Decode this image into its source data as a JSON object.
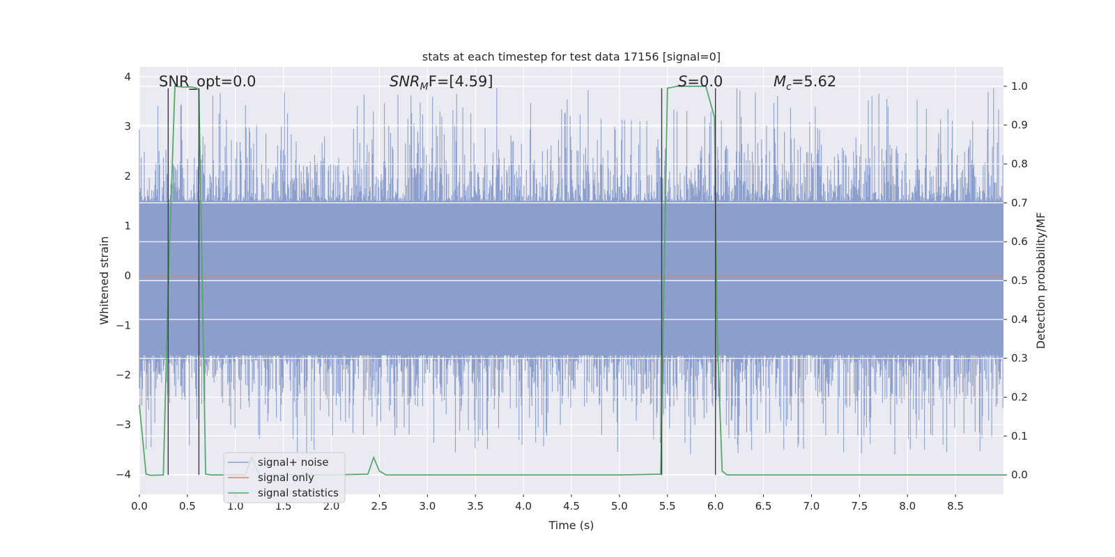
{
  "chart_data": {
    "type": "line",
    "title": "stats at each timestep for test data 17156 [signal=0]",
    "xlabel": "Time (s)",
    "ylabel_left": "Whitened strain",
    "ylabel_right": "Detection probability/MF",
    "xlim": [
      0.0,
      9.0
    ],
    "ylim_left": [
      -4.4,
      4.2
    ],
    "ylim_right": [
      -0.05,
      1.05
    ],
    "x_ticks": [
      "0.0",
      "0.5",
      "1.0",
      "1.5",
      "2.0",
      "2.5",
      "3.0",
      "3.5",
      "4.0",
      "4.5",
      "5.0",
      "5.5",
      "6.0",
      "6.5",
      "7.0",
      "7.5",
      "8.0",
      "8.5"
    ],
    "y_ticks_left": [
      "4",
      "3",
      "2",
      "1",
      "0",
      "−1",
      "−2",
      "−3",
      "−4"
    ],
    "y_ticks_right": [
      "1.0",
      "0.9",
      "0.8",
      "0.7",
      "0.6",
      "0.5",
      "0.4",
      "0.3",
      "0.2",
      "0.1",
      "0.0"
    ],
    "grid": true,
    "legend_position": "lower-left",
    "annotations": [
      {
        "name": "snr-opt",
        "text": "SNR_opt=0.0"
      },
      {
        "name": "snr-mf",
        "text_main": "SNR",
        "text_sub": "M",
        "text_rest": "F=[4.59]"
      },
      {
        "name": "s-value",
        "text_main": "S",
        "text_rest": "=0.0"
      },
      {
        "name": "chirp-mass",
        "text_main": "M",
        "text_sub": "c",
        "text_rest": "=5.62"
      }
    ],
    "series": [
      {
        "name": "signal+ noise",
        "color": "#8c9fcc",
        "axis": "left",
        "noise_band": {
          "typical_range": [
            -1.6,
            1.5
          ],
          "peak_range": [
            -3.6,
            3.8
          ]
        }
      },
      {
        "name": "signal only",
        "color": "#dd8452",
        "axis": "left",
        "x": [
          0.0,
          9.0
        ],
        "y": [
          0.0,
          0.0
        ]
      },
      {
        "name": "signal statistics",
        "color": "#55a868",
        "axis": "right",
        "x": [
          0.0,
          0.07,
          0.12,
          0.25,
          0.3,
          0.37,
          0.45,
          0.55,
          0.6,
          0.62,
          0.69,
          0.75,
          0.9,
          1.1,
          1.17,
          1.25,
          1.5,
          2.0,
          2.38,
          2.44,
          2.5,
          2.57,
          3.0,
          4.0,
          5.0,
          5.43,
          5.45,
          5.5,
          5.6,
          5.9,
          5.99,
          6.02,
          6.07,
          6.12,
          6.5,
          7.0,
          8.0,
          9.0
        ],
        "y": [
          0.18,
          0.002,
          -0.001,
          0.0,
          0.48,
          1.0,
          0.998,
          0.998,
          0.995,
          0.99,
          0.002,
          0.0,
          0.0,
          0.0,
          0.045,
          0.0,
          0.0,
          0.0,
          0.002,
          0.045,
          0.01,
          0.0,
          0.0,
          0.0,
          0.0,
          0.002,
          0.3,
          0.995,
          1.0,
          1.0,
          0.92,
          0.35,
          0.01,
          0.0,
          0.0,
          0.0,
          0.0,
          0.0
        ]
      }
    ],
    "marker_lines_x": [
      0.3,
      0.62,
      5.44,
      6.0
    ]
  }
}
